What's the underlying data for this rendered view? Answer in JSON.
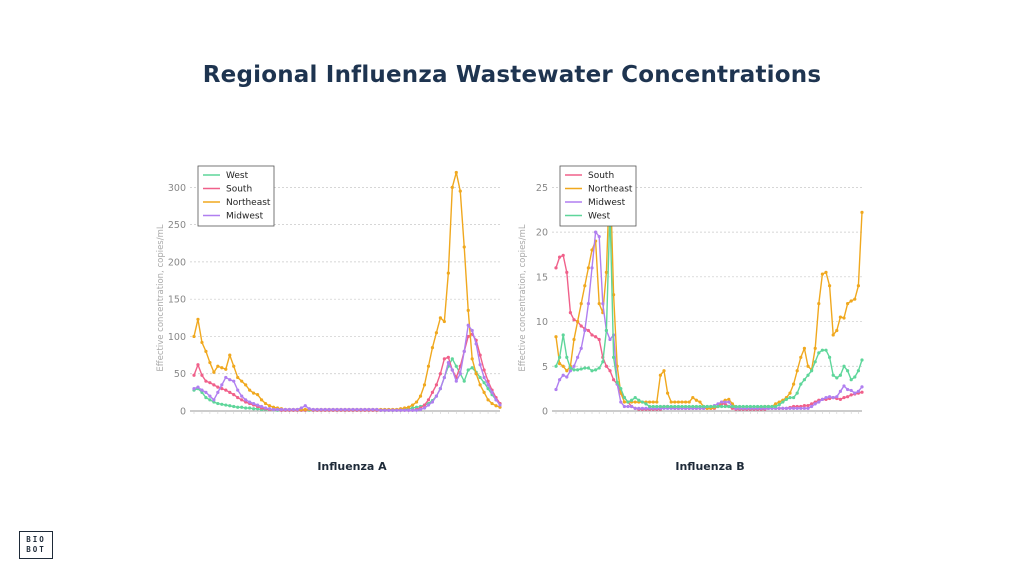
{
  "title": "Regional Influenza Wastewater Concentrations",
  "logo": {
    "line1": "BIO",
    "line2": "BOT"
  },
  "colors": {
    "West": "#5ed69a",
    "South": "#f0608a",
    "Northeast": "#f0a81e",
    "Midwest": "#b07ff0"
  },
  "chart_data": [
    {
      "type": "line",
      "caption": "Influenza A",
      "ylabel": "Effective concentration, copies/mL",
      "ylim": [
        0,
        330
      ],
      "yticks": [
        0,
        50,
        100,
        150,
        200,
        250,
        300
      ],
      "grid": true,
      "legend_position": "top-left",
      "x": [
        0,
        1,
        2,
        3,
        4,
        5,
        6,
        7,
        8,
        9,
        10,
        11,
        12,
        13,
        14,
        15,
        16,
        17,
        18,
        19,
        20,
        21,
        22,
        23,
        24,
        25,
        26,
        27,
        28,
        29,
        30,
        31,
        32,
        33,
        34,
        35,
        36,
        37,
        38,
        39,
        40,
        41,
        42,
        43,
        44,
        45,
        46,
        47,
        48,
        49,
        50,
        51,
        52,
        53,
        54,
        55,
        56,
        57,
        58,
        59,
        60,
        61,
        62,
        63,
        64,
        65,
        66,
        67,
        68,
        69,
        70,
        71,
        72,
        73,
        74,
        75,
        76,
        77
      ],
      "series": [
        {
          "name": "West",
          "values": [
            28,
            30,
            25,
            18,
            15,
            12,
            10,
            9,
            8,
            7,
            6,
            5,
            5,
            4,
            4,
            3,
            3,
            2,
            2,
            2,
            2,
            1,
            1,
            1,
            1,
            1,
            1,
            1,
            1,
            1,
            1,
            1,
            1,
            1,
            1,
            1,
            1,
            1,
            1,
            1,
            1,
            1,
            1,
            1,
            1,
            1,
            1,
            1,
            1,
            1,
            1,
            1,
            1,
            2,
            3,
            4,
            5,
            6,
            8,
            10,
            14,
            20,
            30,
            45,
            60,
            70,
            60,
            50,
            40,
            55,
            58,
            52,
            45,
            38,
            30,
            22,
            15,
            10
          ]
        },
        {
          "name": "South",
          "values": [
            48,
            62,
            48,
            40,
            38,
            35,
            32,
            30,
            28,
            25,
            22,
            18,
            15,
            12,
            10,
            8,
            6,
            4,
            3,
            2,
            2,
            2,
            1,
            1,
            1,
            1,
            1,
            1,
            1,
            2,
            1,
            1,
            1,
            1,
            1,
            1,
            1,
            1,
            1,
            1,
            1,
            1,
            1,
            1,
            1,
            1,
            1,
            1,
            1,
            1,
            1,
            1,
            1,
            1,
            1,
            1,
            2,
            4,
            8,
            15,
            25,
            35,
            50,
            70,
            72,
            55,
            45,
            60,
            80,
            100,
            103,
            95,
            75,
            55,
            40,
            28,
            18,
            10
          ]
        },
        {
          "name": "Northeast",
          "values": [
            100,
            123,
            92,
            80,
            65,
            52,
            60,
            58,
            56,
            75,
            60,
            45,
            40,
            35,
            28,
            24,
            22,
            15,
            10,
            7,
            5,
            4,
            3,
            2,
            2,
            2,
            2,
            2,
            2,
            2,
            2,
            2,
            2,
            2,
            2,
            2,
            2,
            2,
            2,
            2,
            2,
            2,
            2,
            2,
            2,
            2,
            2,
            2,
            2,
            2,
            2,
            2,
            3,
            4,
            5,
            8,
            12,
            20,
            35,
            60,
            85,
            105,
            125,
            120,
            185,
            300,
            320,
            295,
            220,
            135,
            70,
            50,
            35,
            25,
            15,
            10,
            7,
            5
          ]
        },
        {
          "name": "Midwest",
          "values": [
            30,
            32,
            28,
            25,
            20,
            15,
            25,
            35,
            45,
            42,
            40,
            28,
            20,
            15,
            12,
            10,
            8,
            6,
            4,
            3,
            2,
            2,
            2,
            2,
            2,
            2,
            2,
            4,
            7,
            3,
            2,
            2,
            2,
            2,
            2,
            2,
            2,
            2,
            2,
            2,
            2,
            2,
            2,
            2,
            2,
            2,
            2,
            1,
            1,
            1,
            1,
            1,
            1,
            1,
            1,
            1,
            1,
            2,
            4,
            8,
            12,
            20,
            30,
            45,
            65,
            55,
            40,
            50,
            80,
            115,
            108,
            90,
            62,
            45,
            35,
            25,
            15,
            8
          ]
        }
      ]
    },
    {
      "type": "line",
      "caption": "Influenza B",
      "ylabel": "Effective concentration, copies/mL",
      "ylim": [
        0,
        27.5
      ],
      "yticks": [
        0,
        5,
        10,
        15,
        20,
        25
      ],
      "grid": true,
      "legend_position": "top-left",
      "x": [
        0,
        1,
        2,
        3,
        4,
        5,
        6,
        7,
        8,
        9,
        10,
        11,
        12,
        13,
        14,
        15,
        16,
        17,
        18,
        19,
        20,
        21,
        22,
        23,
        24,
        25,
        26,
        27,
        28,
        29,
        30,
        31,
        32,
        33,
        34,
        35,
        36,
        37,
        38,
        39,
        40,
        41,
        42,
        43,
        44,
        45,
        46,
        47,
        48,
        49,
        50,
        51,
        52,
        53,
        54,
        55,
        56,
        57,
        58,
        59,
        60,
        61,
        62,
        63,
        64,
        65,
        66,
        67,
        68,
        69,
        70,
        71,
        72,
        73,
        74,
        75,
        76,
        77,
        78,
        79,
        80,
        81,
        82,
        83,
        84,
        85
      ],
      "series": [
        {
          "name": "South",
          "values": [
            16,
            17.2,
            17.4,
            15.5,
            11,
            10.2,
            10,
            9.5,
            9.2,
            9,
            8.5,
            8.3,
            8,
            6,
            5,
            4.5,
            3.5,
            3,
            2,
            1.5,
            1,
            0.5,
            0.3,
            0.2,
            0.2,
            0.2,
            0.2,
            0.2,
            0.2,
            0.2,
            0.5,
            0.5,
            0.4,
            0.3,
            0.3,
            0.3,
            0.3,
            0.3,
            0.3,
            0.3,
            0.3,
            0.3,
            0.3,
            0.3,
            0.3,
            0.5,
            0.8,
            0.8,
            0.5,
            0.3,
            0.2,
            0.2,
            0.2,
            0.2,
            0.2,
            0.2,
            0.2,
            0.2,
            0.2,
            0.3,
            0.3,
            0.3,
            0.3,
            0.3,
            0.3,
            0.4,
            0.5,
            0.5,
            0.5,
            0.6,
            0.6,
            0.8,
            1,
            1.2,
            1.3,
            1.3,
            1.4,
            1.5,
            1.4,
            1.3,
            1.5,
            1.6,
            1.8,
            1.9,
            2,
            2.1
          ]
        },
        {
          "name": "Northeast",
          "values": [
            8.3,
            5.3,
            5,
            4.5,
            5,
            8,
            10,
            12,
            14,
            16,
            18,
            19,
            12,
            11,
            15.5,
            27.2,
            13,
            5,
            2,
            1,
            1,
            1,
            1,
            1,
            1,
            1,
            1,
            1,
            1,
            4,
            4.5,
            2,
            1,
            1,
            1,
            1,
            1,
            1,
            1.5,
            1.2,
            1,
            0.5,
            0.3,
            0.3,
            0.4,
            0.5,
            1,
            1.2,
            1.3,
            0.8,
            0.4,
            0.3,
            0.3,
            0.3,
            0.3,
            0.3,
            0.3,
            0.4,
            0.5,
            0.5,
            0.5,
            0.8,
            1,
            1.2,
            1.5,
            2,
            3,
            4.5,
            6,
            7,
            5,
            4.6,
            7,
            12,
            15.3,
            15.5,
            14,
            8.5,
            9,
            10.5,
            10.4,
            12,
            12.3,
            12.5,
            14,
            22.2
          ]
        },
        {
          "name": "Midwest",
          "values": [
            2.4,
            3.5,
            4,
            3.8,
            4.5,
            5,
            6,
            7,
            9,
            12,
            16,
            20,
            19.5,
            12,
            9,
            8,
            8.5,
            3,
            1,
            0.5,
            0.5,
            0.5,
            0.3,
            0.3,
            0.3,
            0.3,
            0.3,
            0.3,
            0.3,
            0.3,
            0.3,
            0.3,
            0.3,
            0.3,
            0.3,
            0.3,
            0.3,
            0.3,
            0.3,
            0.3,
            0.3,
            0.3,
            0.5,
            0.5,
            0.6,
            0.8,
            1,
            1,
            1,
            0.5,
            0.3,
            0.3,
            0.3,
            0.3,
            0.3,
            0.3,
            0.3,
            0.3,
            0.3,
            0.3,
            0.3,
            0.3,
            0.3,
            0.3,
            0.3,
            0.3,
            0.3,
            0.3,
            0.3,
            0.3,
            0.3,
            0.5,
            0.8,
            1,
            1.3,
            1.5,
            1.6,
            1.5,
            1.6,
            2.2,
            2.8,
            2.4,
            2.3,
            2,
            2.2,
            2.7
          ]
        },
        {
          "name": "West",
          "values": [
            5,
            6,
            8.5,
            6,
            4.8,
            4.6,
            4.6,
            4.7,
            4.8,
            4.8,
            4.5,
            4.6,
            4.8,
            5.5,
            9,
            22.5,
            6,
            3.2,
            2.5,
            1.5,
            1,
            1.2,
            1.5,
            1.2,
            1,
            0.8,
            0.5,
            0.5,
            0.5,
            0.5,
            0.5,
            0.5,
            0.5,
            0.5,
            0.5,
            0.5,
            0.5,
            0.5,
            0.5,
            0.5,
            0.5,
            0.5,
            0.5,
            0.5,
            0.5,
            0.5,
            0.5,
            0.5,
            0.5,
            0.5,
            0.5,
            0.5,
            0.5,
            0.5,
            0.5,
            0.5,
            0.5,
            0.5,
            0.5,
            0.5,
            0.5,
            0.5,
            0.7,
            1,
            1.3,
            1.5,
            1.5,
            2,
            3,
            3.5,
            4,
            4.5,
            5.5,
            6.5,
            6.8,
            6.8,
            6,
            4,
            3.7,
            4,
            5,
            4.5,
            3.5,
            3.8,
            4.5,
            5.7
          ]
        }
      ]
    }
  ]
}
